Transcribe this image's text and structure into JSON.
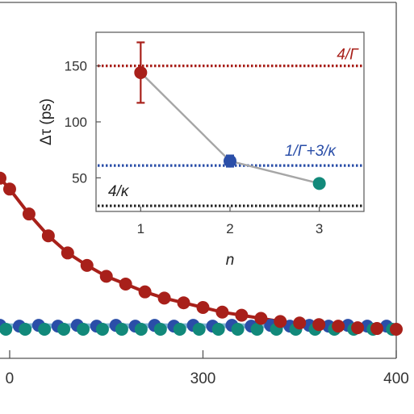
{
  "colors": {
    "red": "#a8201a",
    "blue": "#2a4ea8",
    "teal": "#12897a",
    "light_blue": "#7fb7d4",
    "gray_line": "#a6a6a6",
    "black": "#222222"
  },
  "chart_data": [
    {
      "type": "scatter",
      "x_ticks": [
        "0",
        "300",
        "400"
      ],
      "xlim": [
        195,
        400
      ],
      "ylim": [
        0,
        1
      ],
      "series": [
        {
          "color": "red",
          "marker": "circle",
          "fit_line": true,
          "x": [
            195,
            200,
            210,
            220,
            230,
            240,
            250,
            260,
            270,
            280,
            290,
            300,
            310,
            320,
            330,
            340,
            350,
            360,
            370,
            380,
            390,
            400
          ],
          "y": [
            0.97,
            0.9,
            0.74,
            0.6,
            0.49,
            0.41,
            0.34,
            0.29,
            0.24,
            0.2,
            0.17,
            0.14,
            0.11,
            0.09,
            0.07,
            0.05,
            0.04,
            0.03,
            0.02,
            0.01,
            0.005,
            0.0
          ]
        },
        {
          "color": "blue",
          "marker": "circle",
          "fit_line": true,
          "x": [
            195,
            205,
            215,
            225,
            235,
            245,
            255,
            265,
            275,
            285,
            295,
            305,
            315,
            325,
            335,
            345,
            355,
            365,
            375,
            385,
            395
          ],
          "y": [
            0.025,
            0.02,
            0.025,
            0.02,
            0.025,
            0.02,
            0.025,
            0.02,
            0.025,
            0.02,
            0.025,
            0.02,
            0.025,
            0.02,
            0.025,
            0.02,
            0.025,
            0.02,
            0.025,
            0.02,
            0.02
          ]
        },
        {
          "color": "teal",
          "marker": "circle",
          "fit_line": true,
          "x": [
            198,
            208,
            218,
            228,
            238,
            248,
            258,
            268,
            278,
            288,
            298,
            308,
            318,
            328,
            338,
            348,
            358,
            368,
            378,
            388,
            398
          ],
          "y": [
            0.0,
            0.0,
            0.0,
            0.0,
            0.0,
            0.0,
            0.0,
            0.0,
            0.0,
            0.0,
            0.0,
            0.0,
            0.0,
            0.0,
            0.0,
            0.0,
            0.0,
            0.0,
            0.0,
            0.0,
            0.0
          ]
        }
      ]
    },
    {
      "type": "line",
      "xlabel": "n",
      "ylabel": "Δτ (ps)",
      "x_ticks": [
        "1",
        "2",
        "3"
      ],
      "y_ticks": [
        "50",
        "100",
        "150"
      ],
      "xlim": [
        0.5,
        3.5
      ],
      "ylim": [
        20,
        180
      ],
      "points": [
        {
          "x": 1,
          "y": 144,
          "err_low": 117,
          "err_high": 171,
          "color": "red"
        },
        {
          "x": 2,
          "y": 65,
          "err_low": 60,
          "err_high": 70,
          "color": "blue"
        },
        {
          "x": 3,
          "y": 45,
          "color": "teal"
        }
      ],
      "reference_lines": [
        {
          "y": 150,
          "label": "4/Γ",
          "color": "red"
        },
        {
          "y": 61,
          "label": "1/Γ+3/κ",
          "color": "blue"
        },
        {
          "y": 25,
          "label": "4/κ",
          "color": "black"
        }
      ]
    }
  ]
}
